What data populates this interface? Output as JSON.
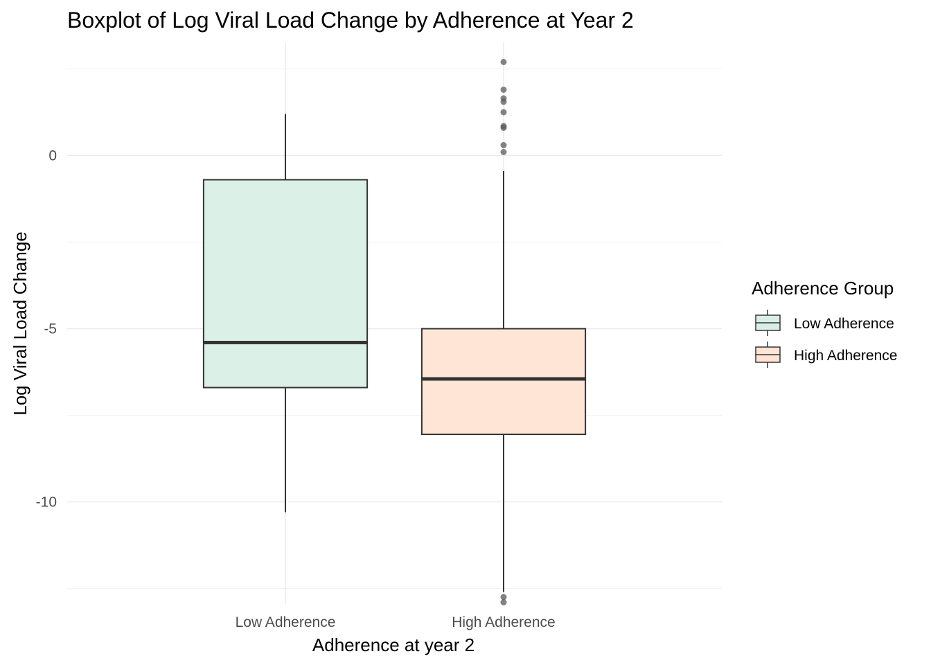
{
  "chart_data": {
    "type": "boxplot",
    "title": "Boxplot of Log Viral Load Change by Adherence at Year 2",
    "xlabel": "Adherence at year 2",
    "ylabel": "Log Viral Load Change",
    "categories": [
      "Low Adherence",
      "High Adherence"
    ],
    "ylim": [
      -12.95,
      3.25
    ],
    "yticks": [
      0,
      -5,
      -10
    ],
    "ytick_labels": [
      "0",
      "-5",
      "-10"
    ],
    "grid": true,
    "legend": {
      "title": "Adherence Group",
      "position": "right",
      "entries": [
        "Low Adherence",
        "High Adherence"
      ]
    },
    "series": [
      {
        "name": "Low Adherence",
        "color": "#d9efe6",
        "whisker_low": -10.3,
        "q1": -6.7,
        "median": -5.4,
        "q3": -0.7,
        "whisker_high": 1.2,
        "outliers": []
      },
      {
        "name": "High Adherence",
        "color": "#ffe4d4",
        "whisker_low": -12.6,
        "q1": -8.05,
        "median": -6.45,
        "q3": -5.0,
        "whisker_high": -0.45,
        "outliers": [
          2.7,
          1.9,
          1.65,
          1.55,
          1.25,
          0.85,
          0.8,
          0.3,
          0.1,
          -12.75,
          -12.9
        ]
      }
    ],
    "box_border_color": "#333333",
    "outlier_color": "#595959"
  }
}
